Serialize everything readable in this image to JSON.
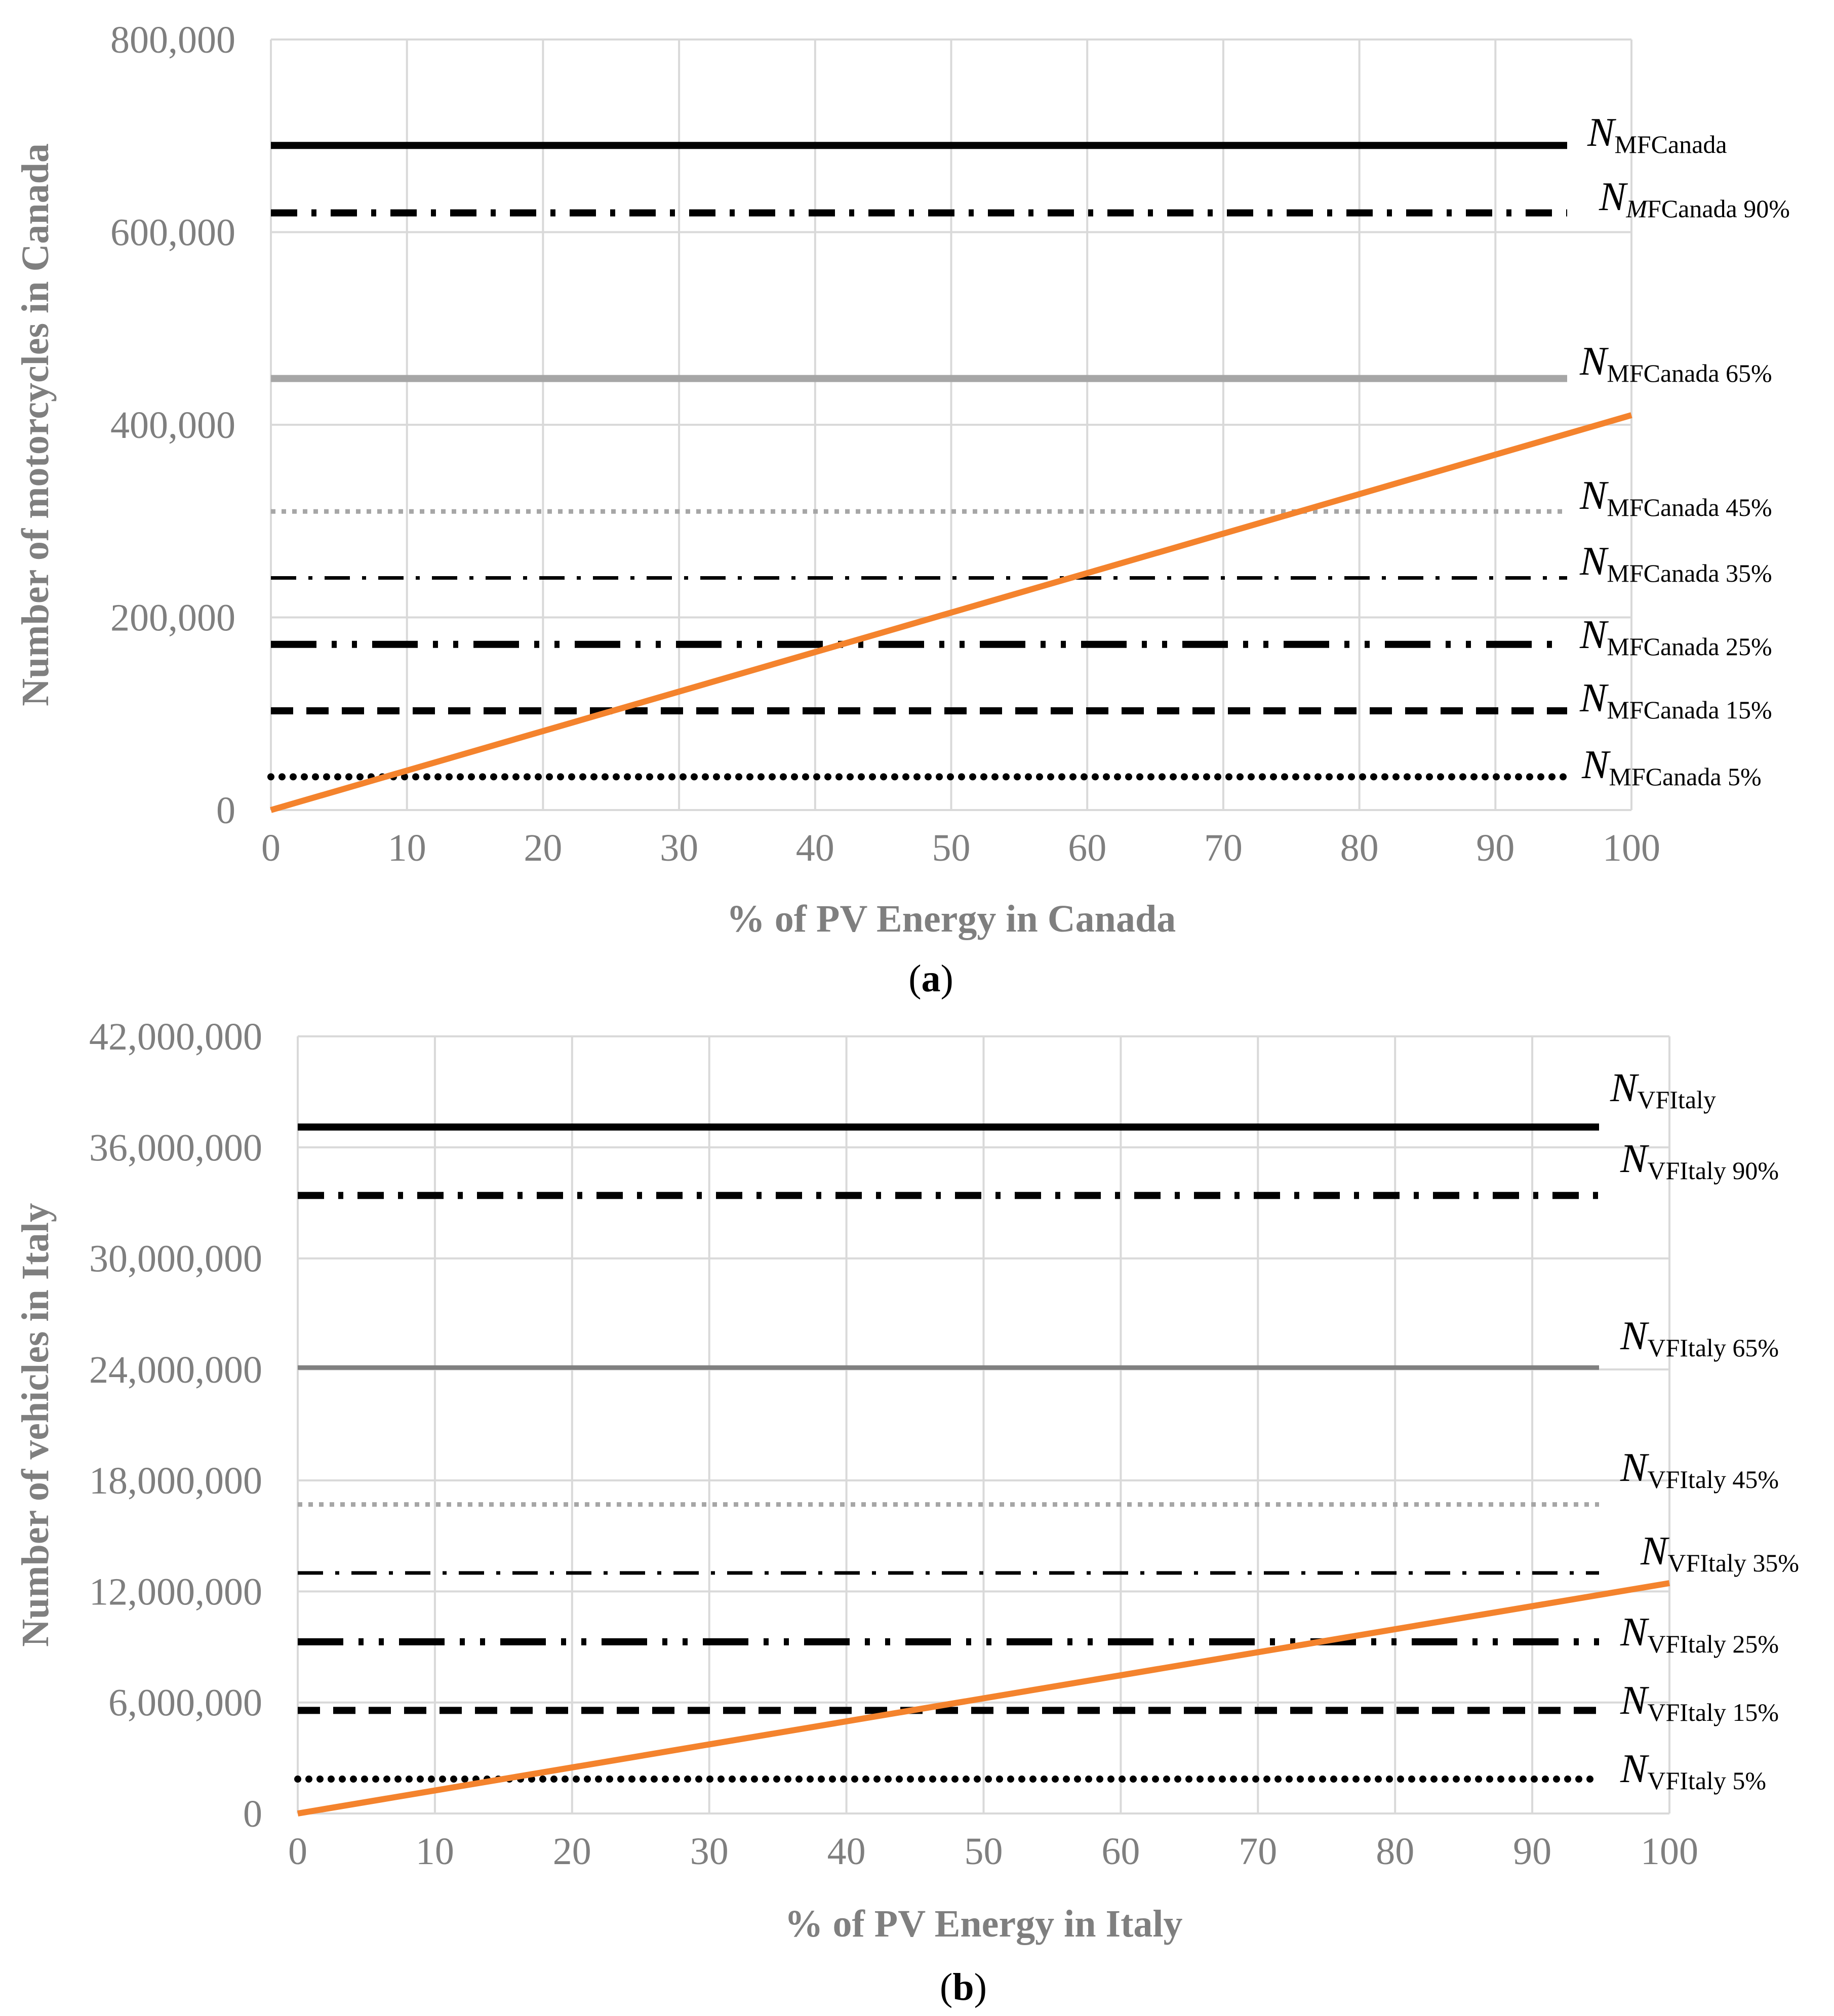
{
  "colors": {
    "grid": "#d9d9d9",
    "tick_text": "#7f7f7f",
    "pv_line": "#f4832d"
  },
  "chart_data": [
    {
      "type": "line",
      "panel_label_open": "(",
      "panel_label_letter": "a",
      "panel_label_close": ")",
      "xlabel": "% of PV Energy in Canada",
      "ylabel": "Number of motorcycles in Canada",
      "xlim": [
        0,
        100
      ],
      "ylim": [
        0,
        800000
      ],
      "grid": true,
      "x_ticks": [
        {
          "value": 0,
          "label": "0"
        },
        {
          "value": 10,
          "label": "10"
        },
        {
          "value": 20,
          "label": "20"
        },
        {
          "value": 30,
          "label": "30"
        },
        {
          "value": 40,
          "label": "40"
        },
        {
          "value": 50,
          "label": "50"
        },
        {
          "value": 60,
          "label": "60"
        },
        {
          "value": 70,
          "label": "70"
        },
        {
          "value": 80,
          "label": "80"
        },
        {
          "value": 90,
          "label": "90"
        },
        {
          "value": 100,
          "label": "100"
        }
      ],
      "y_ticks": [
        {
          "value": 0,
          "label": "0"
        },
        {
          "value": 200000,
          "label": "200,000"
        },
        {
          "value": 400000,
          "label": "400,000"
        },
        {
          "value": 600000,
          "label": "600,000"
        },
        {
          "value": 800000,
          "label": "800,000"
        }
      ],
      "pv_line": {
        "name": "PV energy",
        "x": [
          0,
          100
        ],
        "y": [
          0,
          410000
        ]
      },
      "series": [
        {
          "symbol": "N",
          "symbol_italic": true,
          "subscript": "MFCanada",
          "subscript_italic_prefix": "",
          "value": 690000,
          "style": "solid-black"
        },
        {
          "symbol": "N",
          "symbol_italic": true,
          "subscript": "FCanada 90%",
          "subscript_italic_prefix": "M",
          "value": 620000,
          "style": "dash-dot-black"
        },
        {
          "symbol": "N",
          "symbol_italic": true,
          "subscript": "MFCanada 65%",
          "subscript_italic_prefix": "",
          "value": 448000,
          "style": "solid-gray"
        },
        {
          "symbol": "N",
          "symbol_italic": true,
          "subscript": "MFCanada 45%",
          "subscript_italic_prefix": "",
          "value": 310000,
          "style": "dotted-gray"
        },
        {
          "symbol": "N",
          "symbol_italic": true,
          "subscript": "MFCanada 35%",
          "subscript_italic_prefix": "",
          "value": 241000,
          "style": "thin-dash-dot-black"
        },
        {
          "symbol": "N",
          "symbol_italic": true,
          "subscript": "MFCanada 25%",
          "subscript_italic_prefix": "",
          "value": 172000,
          "style": "long-dash-dot-dot-black"
        },
        {
          "symbol": "N",
          "symbol_italic": true,
          "subscript": "MFCanada 15%",
          "subscript_italic_prefix": "",
          "value": 103000,
          "style": "dashed-black"
        },
        {
          "symbol": "N",
          "symbol_italic": true,
          "subscript": "MFCanada 5%",
          "subscript_italic_prefix": "",
          "value": 34500,
          "style": "dotted-black"
        }
      ]
    },
    {
      "type": "line",
      "panel_label_open": "(",
      "panel_label_letter": "b",
      "panel_label_close": ")",
      "xlabel": "% of PV Energy in Italy",
      "ylabel": "Number of vehicles in Italy",
      "xlim": [
        0,
        100
      ],
      "ylim": [
        0,
        42000000
      ],
      "grid": true,
      "x_ticks": [
        {
          "value": 0,
          "label": "0"
        },
        {
          "value": 10,
          "label": "10"
        },
        {
          "value": 20,
          "label": "20"
        },
        {
          "value": 30,
          "label": "30"
        },
        {
          "value": 40,
          "label": "40"
        },
        {
          "value": 50,
          "label": "50"
        },
        {
          "value": 60,
          "label": "60"
        },
        {
          "value": 70,
          "label": "70"
        },
        {
          "value": 80,
          "label": "80"
        },
        {
          "value": 90,
          "label": "90"
        },
        {
          "value": 100,
          "label": "100"
        }
      ],
      "y_ticks": [
        {
          "value": 0,
          "label": "0"
        },
        {
          "value": 6000000,
          "label": "6,000,000"
        },
        {
          "value": 12000000,
          "label": "12,000,000"
        },
        {
          "value": 18000000,
          "label": "18,000,000"
        },
        {
          "value": 24000000,
          "label": "24,000,000"
        },
        {
          "value": 30000000,
          "label": "30,000,000"
        },
        {
          "value": 36000000,
          "label": "36,000,000"
        },
        {
          "value": 42000000,
          "label": "42,000,000"
        }
      ],
      "pv_line": {
        "name": "PV energy",
        "x": [
          0,
          100
        ],
        "y": [
          0,
          12450000
        ]
      },
      "series": [
        {
          "symbol": "N",
          "symbol_italic": true,
          "subscript": "VFItaly",
          "subscript_italic_prefix": "",
          "value": 37100000,
          "style": "solid-black"
        },
        {
          "symbol": "N",
          "symbol_italic": true,
          "subscript": "VFItaly 90%",
          "subscript_italic_prefix": "",
          "value": 33400000,
          "style": "dash-dot-black"
        },
        {
          "symbol": "N",
          "symbol_italic": true,
          "subscript": "VFItaly 65%",
          "subscript_italic_prefix": "",
          "value": 24100000,
          "style": "solid-gray-dark"
        },
        {
          "symbol": "N",
          "symbol_italic": true,
          "subscript": "VFItaly 45%",
          "subscript_italic_prefix": "",
          "value": 16700000,
          "style": "dotted-gray"
        },
        {
          "symbol": "N",
          "symbol_italic": true,
          "subscript": "VFItaly 35%",
          "subscript_italic_prefix": "",
          "value": 13000000,
          "style": "thin-dash-dot-black"
        },
        {
          "symbol": "N",
          "symbol_italic": true,
          "subscript": "VFItaly 25%",
          "subscript_italic_prefix": "",
          "value": 9280000,
          "style": "long-dash-dot-dot-black"
        },
        {
          "symbol": "N",
          "symbol_italic": true,
          "subscript": "VFItaly 15%",
          "subscript_italic_prefix": "",
          "value": 5570000,
          "style": "dashed-black"
        },
        {
          "symbol": "N",
          "symbol_italic": true,
          "subscript": "VFItaly 5%",
          "subscript_italic_prefix": "",
          "value": 1860000,
          "style": "dotted-black"
        }
      ]
    }
  ]
}
